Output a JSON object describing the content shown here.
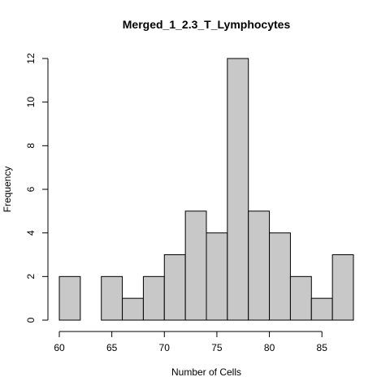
{
  "chart_data": {
    "type": "bar",
    "title": "Merged_1_2.3_T_Lymphocytes",
    "xlabel": "Number of Cells",
    "ylabel": "Frequency",
    "bin_edges": [
      60,
      62,
      64,
      66,
      68,
      70,
      72,
      74,
      76,
      78,
      80,
      82,
      84,
      86,
      88
    ],
    "values": [
      2,
      0,
      2,
      1,
      2,
      3,
      5,
      4,
      12,
      5,
      4,
      2,
      1,
      3
    ],
    "xlim": [
      60,
      88
    ],
    "ylim": [
      0,
      12
    ],
    "x_ticks": [
      60,
      65,
      70,
      75,
      80,
      85
    ],
    "y_ticks": [
      0,
      2,
      4,
      6,
      8,
      10,
      12
    ],
    "grid": false,
    "bar_color": "#c8c8c8"
  }
}
